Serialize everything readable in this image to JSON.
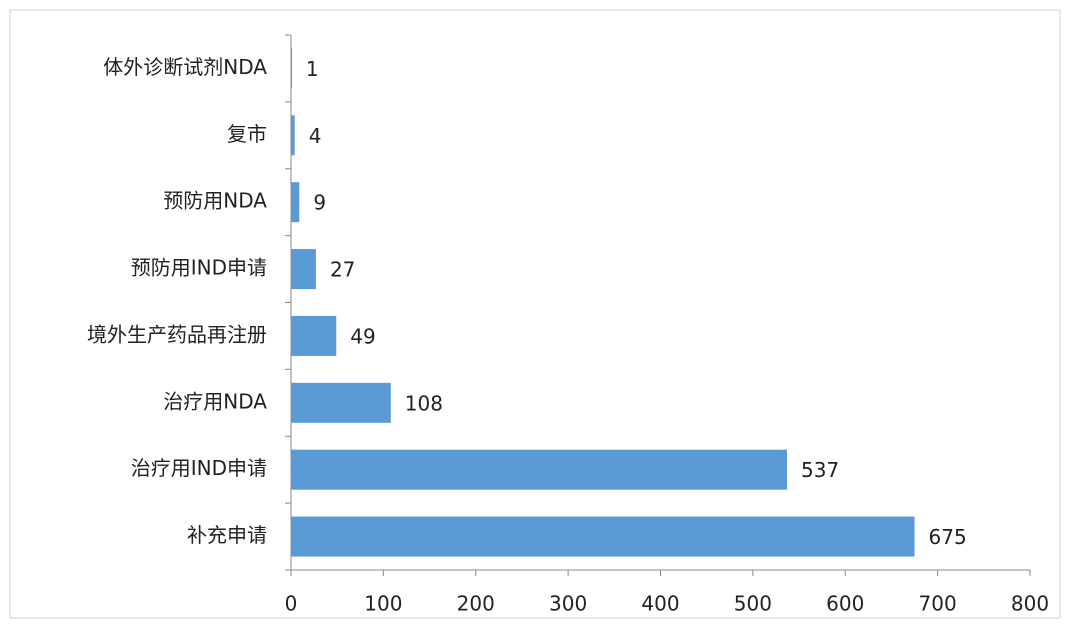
{
  "chart_data": {
    "type": "bar",
    "orientation": "horizontal",
    "categories": [
      "体外诊断试剂NDA",
      "复市",
      "预防用NDA",
      "预防用IND申请",
      "境外生产药品再注册",
      "治疗用NDA",
      "治疗用IND申请",
      "补充申请"
    ],
    "values": [
      1,
      4,
      9,
      27,
      49,
      108,
      537,
      675
    ],
    "color": "#5b9bd5",
    "xlim": [
      0,
      800
    ],
    "xticks": [
      0,
      100,
      200,
      300,
      400,
      500,
      600,
      700,
      800
    ],
    "grid": false
  }
}
